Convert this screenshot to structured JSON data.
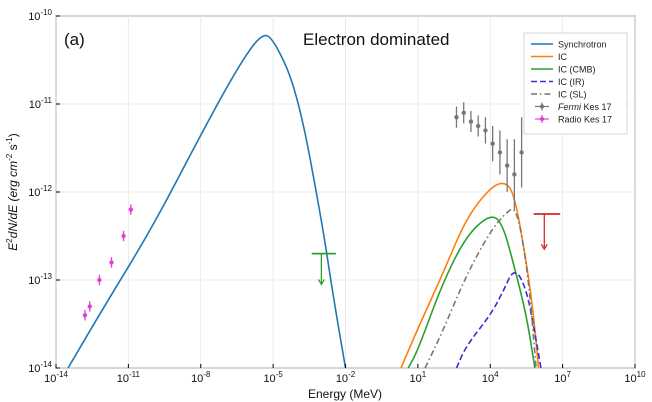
{
  "chart_data": {
    "type": "line",
    "panel_label": "(a)",
    "title": "Electron dominated",
    "xlabel": "Energy (MeV)",
    "ylabel": "E²dN/dE (erg cm⁻² s⁻¹)",
    "ylabel_parts": {
      "main": "E",
      "sup1": "2",
      "mid": "dN/dE (erg cm",
      "sup2": "-2",
      "mid2": " s",
      "sup3": "-1",
      "end": ")"
    },
    "xscale": "log",
    "yscale": "log",
    "xlim": [
      1e-14,
      10000000000.0
    ],
    "ylim": [
      1e-14,
      1e-10
    ],
    "x_ticks": [
      {
        "base": "10",
        "exp": "-14",
        "value": -14
      },
      {
        "base": "10",
        "exp": "-11",
        "value": -11
      },
      {
        "base": "10",
        "exp": "-8",
        "value": -8
      },
      {
        "base": "10",
        "exp": "-5",
        "value": -5
      },
      {
        "base": "10",
        "exp": "-2",
        "value": -2
      },
      {
        "base": "10",
        "exp": "1",
        "value": 1
      },
      {
        "base": "10",
        "exp": "4",
        "value": 4
      },
      {
        "base": "10",
        "exp": "7",
        "value": 7
      },
      {
        "base": "10",
        "exp": "10",
        "value": 10
      }
    ],
    "y_ticks": [
      {
        "base": "10",
        "exp": "-10",
        "value": -10
      },
      {
        "base": "10",
        "exp": "-11",
        "value": -11
      },
      {
        "base": "10",
        "exp": "-12",
        "value": -12
      },
      {
        "base": "10",
        "exp": "-13",
        "value": -13
      },
      {
        "base": "10",
        "exp": "-14",
        "value": -14
      }
    ],
    "grid": true,
    "legend_position": "top-right",
    "series": [
      {
        "name": "Synchrotron",
        "color": "#1f77b4",
        "dash": "solid",
        "x_log": [
          -13.5,
          -12,
          -10,
          -8,
          -6.5,
          -5.5,
          -5,
          -4,
          -3,
          -2.5,
          -2
        ],
        "y_log": [
          -14.0,
          -13.3,
          -12.4,
          -11.35,
          -10.6,
          -10.2,
          -10.25,
          -10.85,
          -12.3,
          -13.2,
          -14.0
        ]
      },
      {
        "name": "IC",
        "color": "#ff7f0e",
        "dash": "solid",
        "x_log": [
          0.3,
          1,
          2,
          3,
          4,
          4.6,
          5,
          5.5,
          5.8,
          6.0
        ],
        "y_log": [
          -14.0,
          -13.55,
          -12.95,
          -12.3,
          -11.95,
          -11.88,
          -12.02,
          -12.8,
          -13.4,
          -14.0
        ]
      },
      {
        "name": "IC (CMB)",
        "color": "#2ca02c",
        "dash": "solid",
        "x_log": [
          0.6,
          1,
          2,
          3,
          4,
          4.5,
          5,
          5.5,
          5.85
        ],
        "y_log": [
          -14.0,
          -13.8,
          -13.05,
          -12.5,
          -12.25,
          -12.35,
          -12.85,
          -13.4,
          -14.0
        ]
      },
      {
        "name": "IC (IR)",
        "color": "#3a2fd0",
        "dash": "dashed",
        "x_log": [
          2.6,
          3,
          4,
          4.5,
          5,
          5.5,
          5.85,
          6.1
        ],
        "y_log": [
          -14.0,
          -13.75,
          -13.4,
          -13.15,
          -12.85,
          -13.1,
          -13.6,
          -14.0
        ]
      },
      {
        "name": "IC (SL)",
        "color": "#777777",
        "dash": "dashdot",
        "x_log": [
          1.3,
          2,
          3,
          4,
          4.6,
          5.1,
          5.6,
          5.9
        ],
        "y_log": [
          -14.0,
          -13.6,
          -12.95,
          -12.45,
          -12.25,
          -12.15,
          -13.0,
          -14.0
        ]
      }
    ],
    "points": [
      {
        "name": "Fermi Kes 17",
        "name_italic": "Fermi",
        "name_rest": " Kes 17",
        "color": "#777777",
        "x_log": [
          2.6,
          2.9,
          3.2,
          3.5,
          3.8,
          4.1,
          4.4,
          4.7,
          5.0,
          5.3
        ],
        "y_log": [
          -11.15,
          -11.1,
          -11.2,
          -11.25,
          -11.3,
          -11.45,
          -11.55,
          -11.7,
          -11.8,
          -11.55
        ],
        "err_log": [
          0.12,
          0.12,
          0.12,
          0.12,
          0.15,
          0.2,
          0.25,
          0.3,
          0.4,
          0.4
        ]
      },
      {
        "name": "Radio Kes 17",
        "color": "#e53fd1",
        "x_log": [
          -12.8,
          -12.6,
          -12.2,
          -11.7,
          -11.2,
          -10.9
        ],
        "y_log": [
          -13.4,
          -13.3,
          -13.0,
          -12.8,
          -12.5,
          -12.2
        ],
        "err_log": [
          0.06,
          0.06,
          0.06,
          0.06,
          0.06,
          0.06
        ]
      }
    ],
    "upper_limits": [
      {
        "color": "#2ca02c",
        "x_log": [
          -3.4,
          -2.4
        ],
        "y_log": -12.7,
        "arrow_len_log": 0.35
      },
      {
        "color": "#d62728",
        "x_log": [
          5.8,
          6.9
        ],
        "y_log": -12.25,
        "arrow_len_log": 0.4
      }
    ]
  }
}
